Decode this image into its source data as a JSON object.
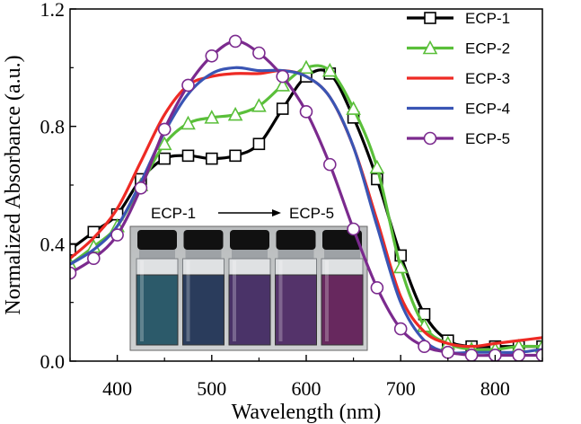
{
  "chart_data": {
    "type": "line",
    "xlabel": "Wavelength (nm)",
    "ylabel": "Normalized Absorbance (a.u.)",
    "xlim": [
      350,
      850
    ],
    "ylim": [
      0.0,
      1.2
    ],
    "x_ticks": [
      400,
      500,
      600,
      700,
      800
    ],
    "y_ticks": [
      0.0,
      0.4,
      0.8,
      1.2
    ],
    "y_tick_labels": [
      "0.0",
      "0.4",
      "0.8",
      "1.2"
    ],
    "legend_position": "top-right",
    "grid": false,
    "series": [
      {
        "name": "ECP-1",
        "color": "#000000",
        "marker": "square",
        "x": [
          350,
          375,
          400,
          425,
          450,
          475,
          500,
          525,
          550,
          575,
          600,
          625,
          650,
          675,
          700,
          725,
          750,
          775,
          800,
          825,
          850
        ],
        "y": [
          0.38,
          0.44,
          0.5,
          0.62,
          0.69,
          0.7,
          0.69,
          0.7,
          0.74,
          0.86,
          0.97,
          0.98,
          0.83,
          0.62,
          0.36,
          0.16,
          0.07,
          0.05,
          0.05,
          0.05,
          0.05
        ]
      },
      {
        "name": "ECP-2",
        "color": "#5abf3a",
        "marker": "triangle",
        "x": [
          350,
          375,
          400,
          425,
          450,
          475,
          500,
          525,
          550,
          575,
          600,
          625,
          650,
          675,
          700,
          725,
          750,
          775,
          800,
          825,
          850
        ],
        "y": [
          0.33,
          0.39,
          0.46,
          0.6,
          0.74,
          0.81,
          0.83,
          0.84,
          0.87,
          0.94,
          1.0,
          0.99,
          0.86,
          0.66,
          0.32,
          0.12,
          0.06,
          0.04,
          0.04,
          0.05,
          0.05
        ]
      },
      {
        "name": "ECP-3",
        "color": "#ee2a24",
        "marker": "none",
        "x": [
          350,
          375,
          400,
          425,
          450,
          475,
          500,
          525,
          550,
          575,
          600,
          625,
          650,
          675,
          700,
          725,
          750,
          775,
          800,
          825,
          850
        ],
        "y": [
          0.35,
          0.42,
          0.52,
          0.68,
          0.84,
          0.94,
          0.97,
          0.98,
          0.98,
          0.99,
          0.97,
          0.9,
          0.73,
          0.48,
          0.22,
          0.1,
          0.06,
          0.05,
          0.06,
          0.07,
          0.08
        ]
      },
      {
        "name": "ECP-4",
        "color": "#3a55b4",
        "marker": "none",
        "x": [
          350,
          375,
          400,
          425,
          450,
          475,
          500,
          525,
          550,
          575,
          600,
          625,
          650,
          675,
          700,
          725,
          750,
          775,
          800,
          825,
          850
        ],
        "y": [
          0.33,
          0.38,
          0.46,
          0.61,
          0.78,
          0.91,
          0.98,
          1.0,
          0.99,
          0.99,
          0.97,
          0.9,
          0.73,
          0.46,
          0.2,
          0.07,
          0.03,
          0.03,
          0.03,
          0.03,
          0.04
        ]
      },
      {
        "name": "ECP-5",
        "color": "#7b2a8e",
        "marker": "circle",
        "x": [
          350,
          375,
          400,
          425,
          450,
          475,
          500,
          525,
          550,
          575,
          600,
          625,
          650,
          675,
          700,
          725,
          750,
          775,
          800,
          825,
          850
        ],
        "y": [
          0.3,
          0.35,
          0.43,
          0.59,
          0.79,
          0.94,
          1.04,
          1.09,
          1.05,
          0.97,
          0.85,
          0.67,
          0.45,
          0.25,
          0.11,
          0.05,
          0.03,
          0.02,
          0.02,
          0.02,
          0.02
        ]
      }
    ],
    "inset": {
      "label_start": "ECP-1",
      "label_end": "ECP-5",
      "vial_colors": [
        "#2c5a6a",
        "#2a3c5c",
        "#4a3368",
        "#54336a",
        "#67285e"
      ]
    }
  }
}
